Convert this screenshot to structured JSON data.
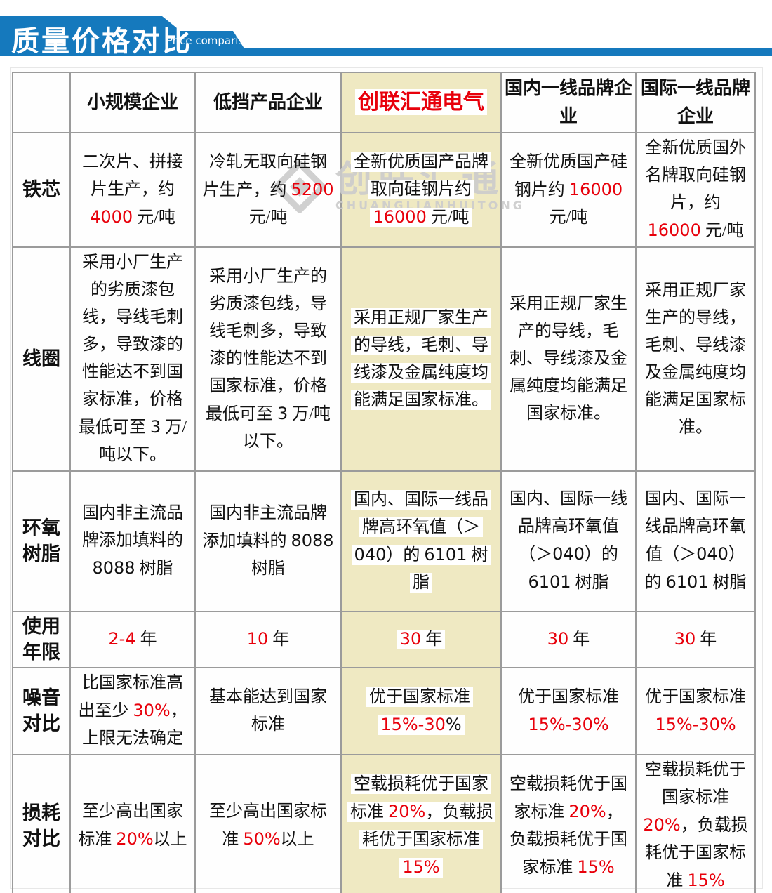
{
  "banner": {
    "title": "质量价格对比",
    "subtitle": "Price comparison",
    "blue": "#1579bd"
  },
  "watermark": {
    "cn": "创联汇通",
    "en": "CHUANGLIANHUITONG"
  },
  "colors": {
    "highlight_beige": "#efe9c2",
    "accent_red": "#e8000b",
    "border_gray": "#9b9b9b"
  },
  "table": {
    "columns": [
      {
        "label": "小规模企业",
        "highlight": false
      },
      {
        "label": "低挡产品企业",
        "highlight": false
      },
      {
        "label": "创联汇通电气",
        "highlight": true,
        "red": true
      },
      {
        "label": "国内一线品牌企业",
        "highlight": false
      },
      {
        "label": "国际一线品牌企业",
        "highlight": false
      }
    ],
    "rows": [
      {
        "label": "铁芯",
        "cells": [
          [
            {
              "t": "二次片、拼接片生产，约 "
            },
            {
              "t": "4000",
              "red": true
            },
            {
              "t": " 元/吨"
            }
          ],
          [
            {
              "t": "冷轧无取向硅钢片生产，约 "
            },
            {
              "t": "5200",
              "red": true
            },
            {
              "t": " 元/吨"
            }
          ],
          [
            {
              "t": "全新优质国产品牌取向硅钢片约 "
            },
            {
              "t": "16000",
              "red": true
            },
            {
              "t": " 元/吨"
            }
          ],
          [
            {
              "t": "全新优质国产硅钢片约 "
            },
            {
              "t": "16000",
              "red": true
            },
            {
              "t": " 元/吨"
            }
          ],
          [
            {
              "t": "全新优质国外名牌取向硅钢片，约 "
            },
            {
              "t": "16000",
              "red": true
            },
            {
              "t": " 元/吨"
            }
          ]
        ]
      },
      {
        "label": "线圈",
        "cells": [
          [
            {
              "t": "采用小厂生产的劣质漆包线，导线毛刺多，导致漆的性能达不到国家标准，价格最低可至 "
            },
            {
              "t": "3",
              "sans": true
            },
            {
              "t": " 万/吨以下。"
            }
          ],
          [
            {
              "t": "采用小厂生产的劣质漆包线，导线毛刺多，导致漆的性能达不到国家标准，价格最低可至 "
            },
            {
              "t": "3",
              "sans": true
            },
            {
              "t": " 万/吨以下。"
            }
          ],
          [
            {
              "t": "采用正规厂家生产的导线，毛刺、导线漆及金属纯度均能满足国家标准。"
            }
          ],
          [
            {
              "t": "采用正规厂家生产的导线，毛刺、导线漆及金属纯度均能满足国家标准。"
            }
          ],
          [
            {
              "t": "采用正规厂家生产的导线，毛刺、导线漆及金属纯度均能满足国家标准。"
            }
          ]
        ]
      },
      {
        "label": "环氧\n树脂",
        "cells": [
          [
            {
              "t": "国内非主流品牌添加填料的 "
            },
            {
              "t": "8088",
              "sans": true
            },
            {
              "t": " 树脂"
            }
          ],
          [
            {
              "t": "国内非主流品牌添加填料的 "
            },
            {
              "t": "8088",
              "sans": true
            },
            {
              "t": " 树脂"
            }
          ],
          [
            {
              "t": "国内、国际一线品牌高环氧值（＞"
            },
            {
              "t": "040",
              "sans": true
            },
            {
              "t": "）的 "
            },
            {
              "t": "6101",
              "sans": true
            },
            {
              "t": " 树脂"
            }
          ],
          [
            {
              "t": "国内、国际一线品牌高环氧值（＞"
            },
            {
              "t": "040",
              "sans": true
            },
            {
              "t": "）的 "
            },
            {
              "t": "6101",
              "sans": true
            },
            {
              "t": " 树脂"
            }
          ],
          [
            {
              "t": "国内、国际一线品牌高环氧值（＞"
            },
            {
              "t": "040",
              "sans": true
            },
            {
              "t": "）的 "
            },
            {
              "t": "6101",
              "sans": true
            },
            {
              "t": " 树脂"
            }
          ]
        ]
      },
      {
        "label": "使用\n年限",
        "cells": [
          [
            {
              "t": "2-4",
              "red": true
            },
            {
              "t": " 年"
            }
          ],
          [
            {
              "t": "10",
              "red": true
            },
            {
              "t": " 年"
            }
          ],
          [
            {
              "t": "30",
              "red": true
            },
            {
              "t": " 年"
            }
          ],
          [
            {
              "t": "30",
              "red": true
            },
            {
              "t": " 年"
            }
          ],
          [
            {
              "t": "30",
              "red": true
            },
            {
              "t": " 年"
            }
          ]
        ]
      },
      {
        "label": "噪音\n对比",
        "cells": [
          [
            {
              "t": "比国家标准高出至少 "
            },
            {
              "t": "30%",
              "red": true
            },
            {
              "t": "，上限无法确定"
            }
          ],
          [
            {
              "t": "基本能达到国家标准"
            }
          ],
          [
            {
              "t": "优于国家标准 "
            },
            {
              "t": "15%-30",
              "red": true
            },
            {
              "t": "%",
              "sans": true
            }
          ],
          [
            {
              "t": "优于国家标准 "
            },
            {
              "t": "15%-30%",
              "red": true
            }
          ],
          [
            {
              "t": "优于国家标准 "
            },
            {
              "t": "15%-30%",
              "red": true
            }
          ]
        ]
      },
      {
        "label": "损耗\n对比",
        "cells": [
          [
            {
              "t": "至少高出国家标准 "
            },
            {
              "t": "20%",
              "red": true
            },
            {
              "t": "以上"
            }
          ],
          [
            {
              "t": "至少高出国家标准 "
            },
            {
              "t": "50%",
              "red": true
            },
            {
              "t": "以上"
            }
          ],
          [
            {
              "t": "空载损耗优于国家标准 "
            },
            {
              "t": "20%",
              "red": true
            },
            {
              "t": "，负载损耗优于国家标准 "
            },
            {
              "t": "15%",
              "red": true
            }
          ],
          [
            {
              "t": "空载损耗优于国家标准 "
            },
            {
              "t": "20%",
              "red": true
            },
            {
              "t": "，负载损耗优于国家标准 "
            },
            {
              "t": "15%",
              "red": true
            }
          ],
          [
            {
              "t": "空载损耗优于国家标准 "
            },
            {
              "t": "20%",
              "red": true
            },
            {
              "t": "，负载损耗优于国家标准 "
            },
            {
              "t": "15%",
              "red": true
            }
          ]
        ]
      }
    ]
  }
}
